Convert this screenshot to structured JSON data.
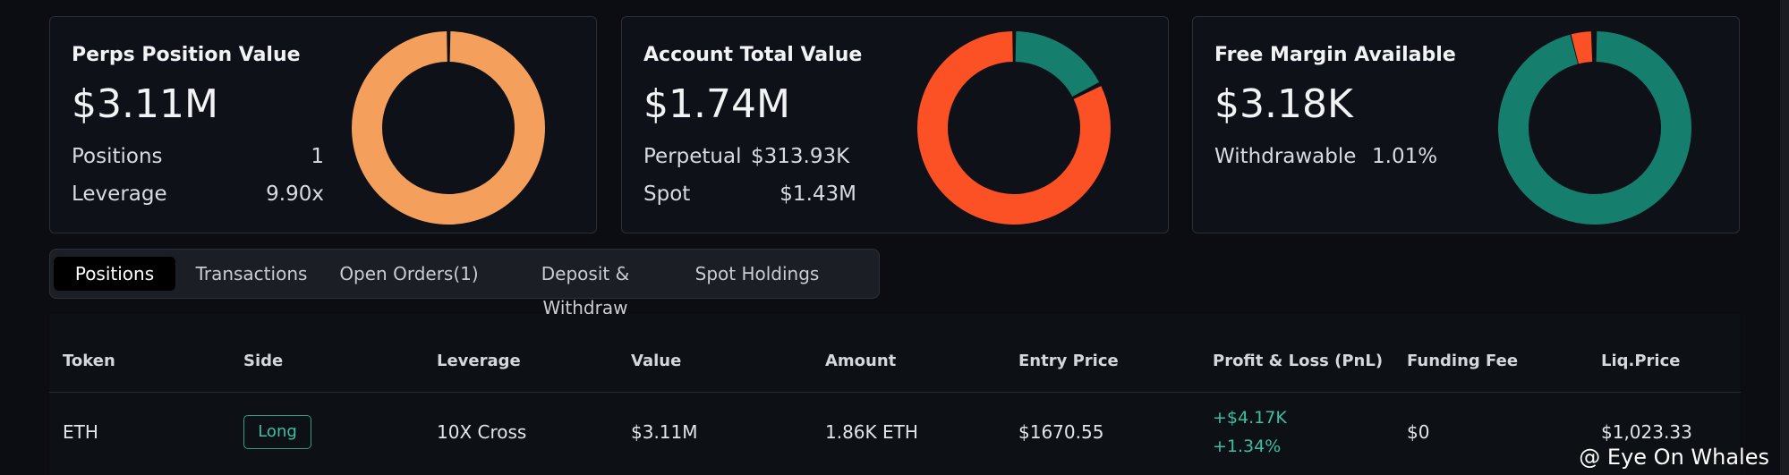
{
  "cards": [
    {
      "title": "Perps Position Value",
      "value": "$3.11M",
      "rows": [
        [
          "Positions",
          "1"
        ],
        [
          "Leverage",
          "9.90x"
        ]
      ]
    },
    {
      "title": "Account Total Value",
      "value": "$1.74M",
      "rows": [
        [
          "Perpetual",
          "$313.93K"
        ],
        [
          "Spot",
          "$1.43M"
        ]
      ]
    },
    {
      "title": "Free Margin Available",
      "value": "$3.18K",
      "rows": [
        [
          "Withdrawable",
          "1.01%"
        ]
      ]
    }
  ],
  "tabs": [
    "Positions",
    "Transactions",
    "Open Orders(1)",
    "Deposit & Withdraw",
    "Spot Holdings"
  ],
  "table": {
    "headers": [
      "Token",
      "Side",
      "Leverage",
      "Value",
      "Amount",
      "Entry Price",
      "Profit & Loss (PnL)",
      "Funding Fee",
      "Liq.Price"
    ],
    "rows": [
      [
        "ETH",
        "Long",
        "10X Cross",
        "$3.11M",
        "1.86K ETH",
        "$1670.55",
        [
          "+$4.17K",
          "+1.34%"
        ],
        "$0",
        "$1,023.33"
      ]
    ]
  },
  "watermark": "@ Eye On Whales"
}
